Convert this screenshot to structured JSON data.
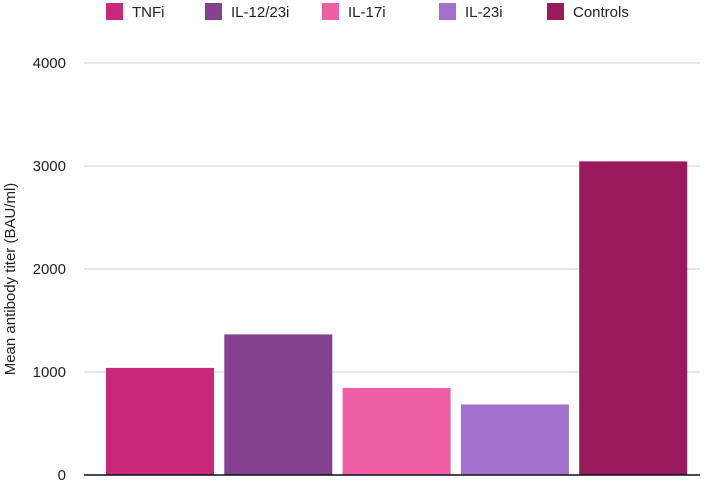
{
  "chart_data": {
    "type": "bar",
    "categories": [
      "TNFi",
      "IL-12/23i",
      "IL-17i",
      "IL-23i",
      "Controls"
    ],
    "values": [
      1040,
      1365,
      845,
      685,
      3045
    ],
    "colors": [
      "#c9287b",
      "#83418f",
      "#ee5fa6",
      "#a072cd",
      "#9b1a5e"
    ],
    "title": "",
    "xlabel": "",
    "ylabel": "Mean antibody titer (BAU/ml)",
    "ylim": [
      0,
      4000
    ],
    "yticks": [
      0,
      1000,
      2000,
      3000,
      4000
    ],
    "grid": true,
    "legend_position": "top"
  }
}
